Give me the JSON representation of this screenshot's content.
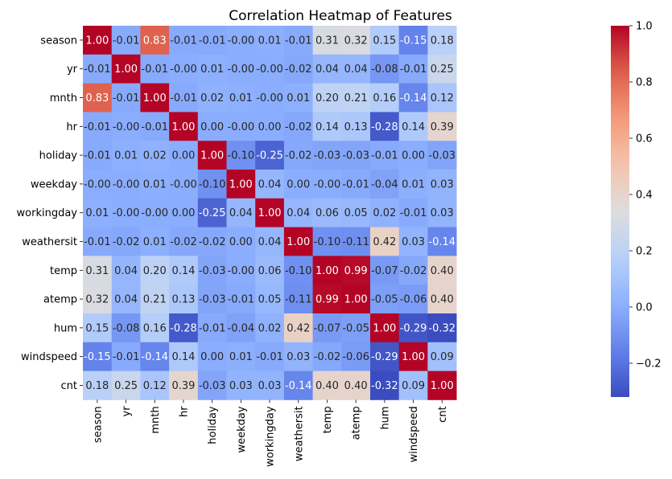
{
  "chart_data": {
    "type": "heatmap",
    "title": "Correlation Heatmap of Features",
    "labels": [
      "season",
      "yr",
      "mnth",
      "hr",
      "holiday",
      "weekday",
      "workingday",
      "weathersit",
      "temp",
      "atemp",
      "hum",
      "windspeed",
      "cnt"
    ],
    "values": [
      [
        1.0,
        -0.01,
        0.83,
        -0.01,
        -0.01,
        -0.0,
        0.01,
        -0.01,
        0.31,
        0.32,
        0.15,
        -0.15,
        0.18
      ],
      [
        -0.01,
        1.0,
        -0.01,
        -0.0,
        0.01,
        -0.0,
        -0.0,
        -0.02,
        0.04,
        0.04,
        -0.08,
        -0.01,
        0.25
      ],
      [
        0.83,
        -0.01,
        1.0,
        -0.01,
        0.02,
        0.01,
        -0.0,
        0.01,
        0.2,
        0.21,
        0.16,
        -0.14,
        0.12
      ],
      [
        -0.01,
        -0.0,
        -0.01,
        1.0,
        0.0,
        -0.0,
        0.0,
        -0.02,
        0.14,
        0.13,
        -0.28,
        0.14,
        0.39
      ],
      [
        -0.01,
        0.01,
        0.02,
        0.0,
        1.0,
        -0.1,
        -0.25,
        -0.02,
        -0.03,
        -0.03,
        -0.01,
        0.0,
        -0.03
      ],
      [
        -0.0,
        -0.0,
        0.01,
        -0.0,
        -0.1,
        1.0,
        0.04,
        0.0,
        -0.0,
        -0.01,
        -0.04,
        0.01,
        0.03
      ],
      [
        0.01,
        -0.0,
        -0.0,
        0.0,
        -0.25,
        0.04,
        1.0,
        0.04,
        0.06,
        0.05,
        0.02,
        -0.01,
        0.03
      ],
      [
        -0.01,
        -0.02,
        0.01,
        -0.02,
        -0.02,
        0.0,
        0.04,
        1.0,
        -0.1,
        -0.11,
        0.42,
        0.03,
        -0.14
      ],
      [
        0.31,
        0.04,
        0.2,
        0.14,
        -0.03,
        -0.0,
        0.06,
        -0.1,
        1.0,
        0.99,
        -0.07,
        -0.02,
        0.4
      ],
      [
        0.32,
        0.04,
        0.21,
        0.13,
        -0.03,
        -0.01,
        0.05,
        -0.11,
        0.99,
        1.0,
        -0.05,
        -0.06,
        0.4
      ],
      [
        0.15,
        -0.08,
        0.16,
        -0.28,
        -0.01,
        -0.04,
        0.02,
        0.42,
        -0.07,
        -0.05,
        1.0,
        -0.29,
        -0.32
      ],
      [
        -0.15,
        -0.01,
        -0.14,
        0.14,
        0.0,
        0.01,
        -0.01,
        0.03,
        -0.02,
        -0.06,
        -0.29,
        1.0,
        0.09
      ],
      [
        0.18,
        0.25,
        0.12,
        0.39,
        -0.03,
        0.03,
        0.03,
        -0.14,
        0.4,
        0.4,
        -0.32,
        0.09,
        1.0
      ]
    ],
    "value_range": [
      -0.32,
      1.0
    ],
    "colormap": "coolwarm",
    "colorbar_ticks": [
      -0.2,
      0.0,
      0.2,
      0.4,
      0.6,
      0.8,
      1.0
    ],
    "colorbar_tick_labels": [
      "−0.2",
      "0.0",
      "0.2",
      "0.4",
      "0.6",
      "0.8",
      "1.0"
    ],
    "grid": false,
    "annotations": "two-decimal values inside each cell"
  }
}
